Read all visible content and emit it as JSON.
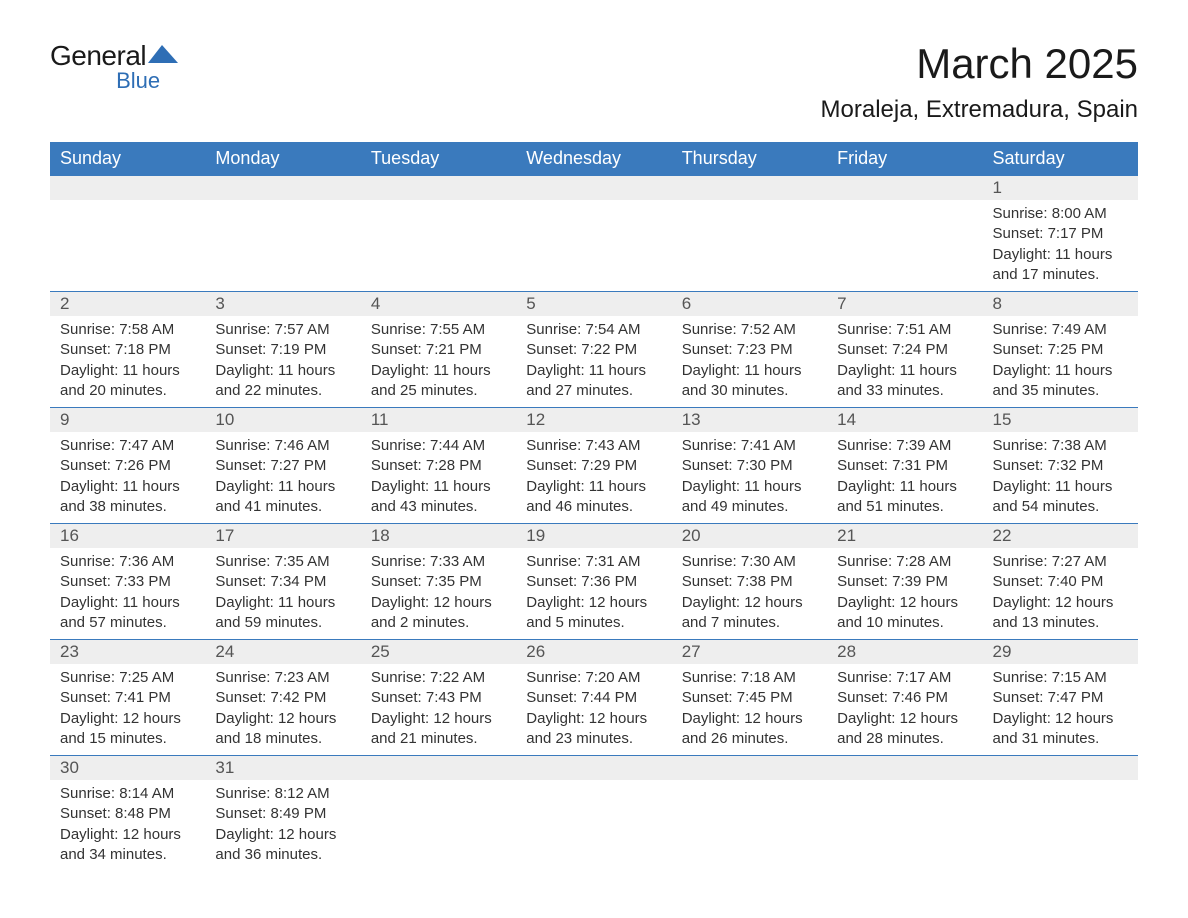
{
  "brand": {
    "line1": "General",
    "line2": "Blue",
    "logo_color": "#2e6eb5"
  },
  "title": "March 2025",
  "location": "Moraleja, Extremadura, Spain",
  "colors": {
    "header_bg": "#3a7abd",
    "header_text": "#ffffff",
    "daynum_bg": "#eeeeee",
    "daynum_text": "#555555",
    "body_text": "#333333",
    "rule": "#3a7abd"
  },
  "fonts": {
    "title_pt": 42,
    "location_pt": 24,
    "dayhead_pt": 18,
    "daynum_pt": 17,
    "body_pt": 15
  },
  "day_headers": [
    "Sunday",
    "Monday",
    "Tuesday",
    "Wednesday",
    "Thursday",
    "Friday",
    "Saturday"
  ],
  "labels": {
    "sunrise": "Sunrise:",
    "sunset": "Sunset:",
    "daylight": "Daylight:"
  },
  "weeks": [
    [
      null,
      null,
      null,
      null,
      null,
      null,
      {
        "n": "1",
        "sunrise": "8:00 AM",
        "sunset": "7:17 PM",
        "daylight": "11 hours and 17 minutes."
      }
    ],
    [
      {
        "n": "2",
        "sunrise": "7:58 AM",
        "sunset": "7:18 PM",
        "daylight": "11 hours and 20 minutes."
      },
      {
        "n": "3",
        "sunrise": "7:57 AM",
        "sunset": "7:19 PM",
        "daylight": "11 hours and 22 minutes."
      },
      {
        "n": "4",
        "sunrise": "7:55 AM",
        "sunset": "7:21 PM",
        "daylight": "11 hours and 25 minutes."
      },
      {
        "n": "5",
        "sunrise": "7:54 AM",
        "sunset": "7:22 PM",
        "daylight": "11 hours and 27 minutes."
      },
      {
        "n": "6",
        "sunrise": "7:52 AM",
        "sunset": "7:23 PM",
        "daylight": "11 hours and 30 minutes."
      },
      {
        "n": "7",
        "sunrise": "7:51 AM",
        "sunset": "7:24 PM",
        "daylight": "11 hours and 33 minutes."
      },
      {
        "n": "8",
        "sunrise": "7:49 AM",
        "sunset": "7:25 PM",
        "daylight": "11 hours and 35 minutes."
      }
    ],
    [
      {
        "n": "9",
        "sunrise": "7:47 AM",
        "sunset": "7:26 PM",
        "daylight": "11 hours and 38 minutes."
      },
      {
        "n": "10",
        "sunrise": "7:46 AM",
        "sunset": "7:27 PM",
        "daylight": "11 hours and 41 minutes."
      },
      {
        "n": "11",
        "sunrise": "7:44 AM",
        "sunset": "7:28 PM",
        "daylight": "11 hours and 43 minutes."
      },
      {
        "n": "12",
        "sunrise": "7:43 AM",
        "sunset": "7:29 PM",
        "daylight": "11 hours and 46 minutes."
      },
      {
        "n": "13",
        "sunrise": "7:41 AM",
        "sunset": "7:30 PM",
        "daylight": "11 hours and 49 minutes."
      },
      {
        "n": "14",
        "sunrise": "7:39 AM",
        "sunset": "7:31 PM",
        "daylight": "11 hours and 51 minutes."
      },
      {
        "n": "15",
        "sunrise": "7:38 AM",
        "sunset": "7:32 PM",
        "daylight": "11 hours and 54 minutes."
      }
    ],
    [
      {
        "n": "16",
        "sunrise": "7:36 AM",
        "sunset": "7:33 PM",
        "daylight": "11 hours and 57 minutes."
      },
      {
        "n": "17",
        "sunrise": "7:35 AM",
        "sunset": "7:34 PM",
        "daylight": "11 hours and 59 minutes."
      },
      {
        "n": "18",
        "sunrise": "7:33 AM",
        "sunset": "7:35 PM",
        "daylight": "12 hours and 2 minutes."
      },
      {
        "n": "19",
        "sunrise": "7:31 AM",
        "sunset": "7:36 PM",
        "daylight": "12 hours and 5 minutes."
      },
      {
        "n": "20",
        "sunrise": "7:30 AM",
        "sunset": "7:38 PM",
        "daylight": "12 hours and 7 minutes."
      },
      {
        "n": "21",
        "sunrise": "7:28 AM",
        "sunset": "7:39 PM",
        "daylight": "12 hours and 10 minutes."
      },
      {
        "n": "22",
        "sunrise": "7:27 AM",
        "sunset": "7:40 PM",
        "daylight": "12 hours and 13 minutes."
      }
    ],
    [
      {
        "n": "23",
        "sunrise": "7:25 AM",
        "sunset": "7:41 PM",
        "daylight": "12 hours and 15 minutes."
      },
      {
        "n": "24",
        "sunrise": "7:23 AM",
        "sunset": "7:42 PM",
        "daylight": "12 hours and 18 minutes."
      },
      {
        "n": "25",
        "sunrise": "7:22 AM",
        "sunset": "7:43 PM",
        "daylight": "12 hours and 21 minutes."
      },
      {
        "n": "26",
        "sunrise": "7:20 AM",
        "sunset": "7:44 PM",
        "daylight": "12 hours and 23 minutes."
      },
      {
        "n": "27",
        "sunrise": "7:18 AM",
        "sunset": "7:45 PM",
        "daylight": "12 hours and 26 minutes."
      },
      {
        "n": "28",
        "sunrise": "7:17 AM",
        "sunset": "7:46 PM",
        "daylight": "12 hours and 28 minutes."
      },
      {
        "n": "29",
        "sunrise": "7:15 AM",
        "sunset": "7:47 PM",
        "daylight": "12 hours and 31 minutes."
      }
    ],
    [
      {
        "n": "30",
        "sunrise": "8:14 AM",
        "sunset": "8:48 PM",
        "daylight": "12 hours and 34 minutes."
      },
      {
        "n": "31",
        "sunrise": "8:12 AM",
        "sunset": "8:49 PM",
        "daylight": "12 hours and 36 minutes."
      },
      null,
      null,
      null,
      null,
      null
    ]
  ]
}
